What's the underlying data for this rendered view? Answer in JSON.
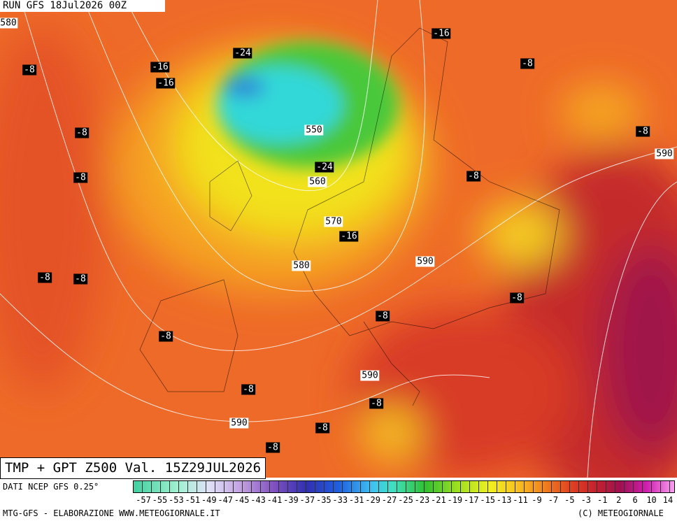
{
  "header": "RUN GFS 18Jul2026 00Z",
  "title": "TMP + GPT Z500 Val. 15Z29JUL2026",
  "footer": {
    "source": "DATI NCEP GFS 0.25°",
    "credit": "MTG-GFS - ELABORAZIONE WWW.METEOGIORNALE.IT",
    "copyright": "(C) METEOGIORNALE"
  },
  "temperature_labels": [
    "-24",
    "-8",
    "-16",
    "-16",
    "-8",
    "-8",
    "-16",
    "-8",
    "-8",
    "-24",
    "-8",
    "-16",
    "-8",
    "-8",
    "-8",
    "-8",
    "-8",
    "-8",
    "-8",
    "-8",
    "-8"
  ],
  "height_labels": [
    "580",
    "550",
    "560",
    "570",
    "580",
    "590",
    "590",
    "590",
    "590"
  ],
  "colorbar_labels": [
    "-57",
    "-55",
    "-53",
    "-51",
    "-49",
    "-47",
    "-45",
    "-43",
    "-41",
    "-39",
    "-37",
    "-35",
    "-33",
    "-31",
    "-29",
    "-27",
    "-25",
    "-23",
    "-21",
    "-19",
    "-17",
    "-15",
    "-13",
    "-11",
    "-9",
    "-7",
    "-5",
    "-3",
    "-1",
    "2",
    "6",
    "10",
    "14"
  ]
}
